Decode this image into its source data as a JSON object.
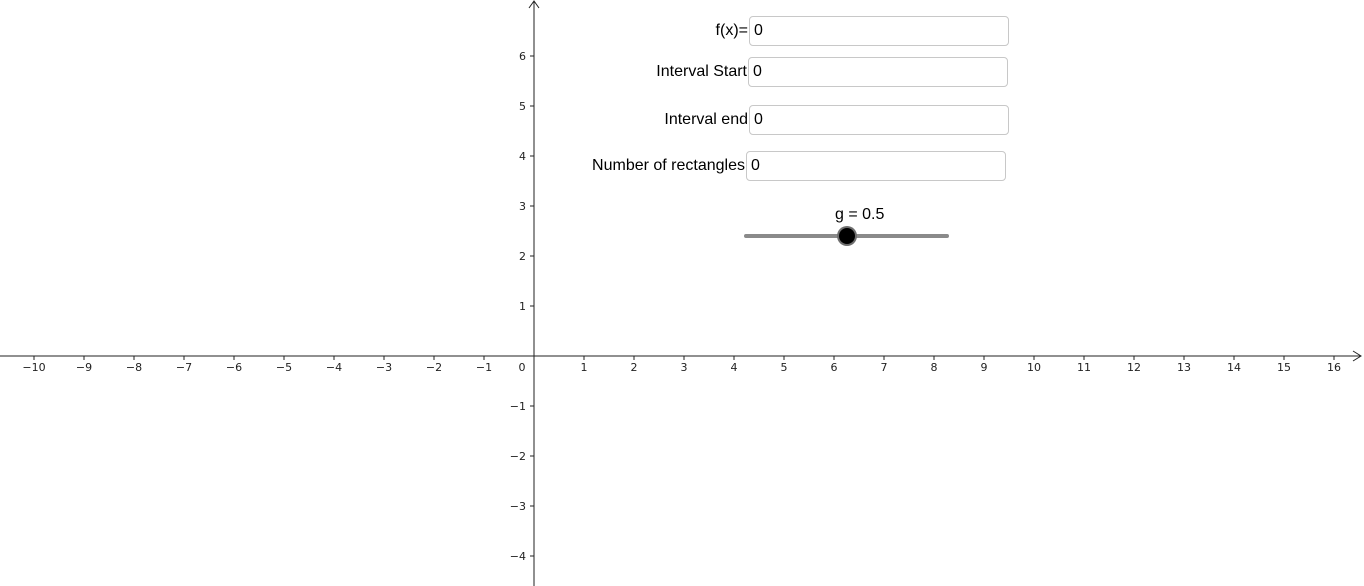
{
  "axes": {
    "x_ticks": [
      "−10",
      "−9",
      "−8",
      "−7",
      "−6",
      "−5",
      "−4",
      "−3",
      "−2",
      "−1",
      "1",
      "2",
      "3",
      "4",
      "5",
      "6",
      "7",
      "8",
      "9",
      "10",
      "11",
      "12",
      "13",
      "14",
      "15",
      "16"
    ],
    "x_values": [
      -10,
      -9,
      -8,
      -7,
      -6,
      -5,
      -4,
      -3,
      -2,
      -1,
      1,
      2,
      3,
      4,
      5,
      6,
      7,
      8,
      9,
      10,
      11,
      12,
      13,
      14,
      15,
      16
    ],
    "y_ticks": [
      "−4",
      "−3",
      "−2",
      "−1",
      "1",
      "2",
      "3",
      "4",
      "5",
      "6"
    ],
    "y_values": [
      -4,
      -3,
      -2,
      -1,
      1,
      2,
      3,
      4,
      5,
      6
    ],
    "origin_label": "0"
  },
  "inputs": {
    "fx_label": "f(x)=",
    "fx_value": "0",
    "start_label": "Interval Start",
    "start_value": "0",
    "end_label": "Interval end",
    "end_value": "0",
    "rect_label": "Number of rectangles",
    "rect_value": "0"
  },
  "slider": {
    "label": "g = 0.5",
    "value": 0.5
  }
}
